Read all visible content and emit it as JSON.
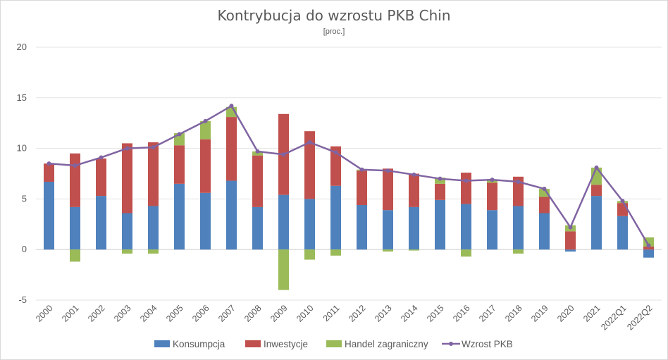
{
  "chart_data": {
    "type": "bar",
    "stacked": true,
    "title": "Kontrybucja do wzrostu PKB Chin",
    "subtitle": "[proc.]",
    "ylim": [
      -5,
      20
    ],
    "yticks": [
      -5,
      0,
      5,
      10,
      15,
      20
    ],
    "grid": true,
    "legend_position": "bottom",
    "categories": [
      "2000",
      "2001",
      "2002",
      "2003",
      "2004",
      "2005",
      "2006",
      "2007",
      "2008",
      "2009",
      "2010",
      "2011",
      "2012",
      "2013",
      "2014",
      "2015",
      "2016",
      "2017",
      "2018",
      "2019",
      "2020",
      "2021",
      "2022Q1",
      "2022Q2"
    ],
    "series": [
      {
        "name": "Konsumpcja",
        "type": "bar",
        "color": "#4f81bd",
        "values": [
          6.7,
          4.2,
          5.3,
          3.6,
          4.3,
          6.5,
          5.6,
          6.8,
          4.2,
          5.4,
          5.0,
          6.3,
          4.4,
          3.9,
          4.2,
          4.9,
          4.5,
          3.9,
          4.3,
          3.6,
          -0.2,
          5.3,
          3.3,
          -0.8
        ]
      },
      {
        "name": "Inwestycje",
        "type": "bar",
        "color": "#c0504d",
        "values": [
          1.8,
          5.3,
          3.7,
          6.9,
          6.3,
          3.8,
          5.3,
          6.3,
          5.1,
          8.0,
          6.7,
          3.9,
          3.4,
          4.1,
          3.3,
          1.6,
          3.1,
          2.7,
          2.9,
          1.6,
          1.8,
          1.1,
          1.3,
          0.3
        ]
      },
      {
        "name": "Handel zagraniczny",
        "type": "bar",
        "color": "#9bbb59",
        "values": [
          0.0,
          -1.2,
          0.0,
          -0.4,
          -0.4,
          1.2,
          1.8,
          1.0,
          0.4,
          -4.0,
          -1.0,
          -0.6,
          0.1,
          -0.2,
          -0.1,
          0.6,
          -0.7,
          0.3,
          -0.4,
          0.8,
          0.6,
          1.7,
          0.2,
          0.9
        ]
      },
      {
        "name": "Wzrost PKB",
        "type": "line",
        "color": "#8064a2",
        "values": [
          8.5,
          8.3,
          9.1,
          10.0,
          10.1,
          11.4,
          12.7,
          14.2,
          9.7,
          9.4,
          10.6,
          9.6,
          7.9,
          7.8,
          7.4,
          7.0,
          6.8,
          6.9,
          6.7,
          6.0,
          2.2,
          8.1,
          4.8,
          0.4
        ]
      }
    ]
  }
}
